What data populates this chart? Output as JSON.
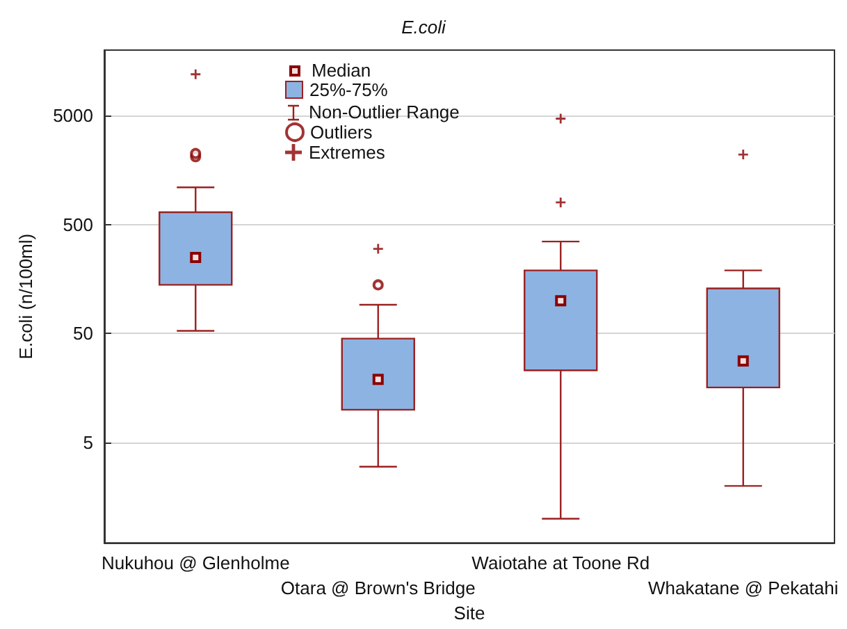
{
  "chart_data": {
    "type": "box",
    "title": "E.coli",
    "xlabel": "Site",
    "ylabel": "E.coli (n/100ml)",
    "categories": [
      "Nukuhou @ Glenholme",
      "Otara @ Brown's Bridge",
      "Waiotahe at Toone Rd",
      "Whakatane @ Pekatahi"
    ],
    "log": "y",
    "ylim": [
      0.6,
      20000
    ],
    "yticks": [
      5,
      50,
      500,
      5000
    ],
    "grid": "y",
    "legend": "top",
    "annotations": [
      "Median",
      "Non-Outlier Range"
    ],
    "series": [
      {
        "type": "box",
        "name": "25%-75%",
        "color": "#8db3e2",
        "boxes": [
          {
            "low": 53,
            "q1": 140,
            "median": 250,
            "q3": 650,
            "high": 1100
          },
          {
            "low": 3,
            "q1": 10,
            "median": 19,
            "q3": 45,
            "high": 92
          },
          {
            "low": 1,
            "q1": 23,
            "median": 100,
            "q3": 190,
            "high": 350
          },
          {
            "low": 2,
            "q1": 16,
            "median": 28,
            "q3": 130,
            "high": 190
          }
        ]
      },
      {
        "type": "scatter",
        "name": "Outliers",
        "color": "#8b0000",
        "marker": "circle",
        "x": [
          "Nukuhou @ Glenholme",
          "Nukuhou @ Glenholme",
          "Otara @ Brown's Bridge"
        ],
        "values": [
          2100,
          2250,
          140
        ]
      },
      {
        "type": "scatter",
        "name": "Extremes",
        "color": "#8b0000",
        "marker": "cross",
        "x": [
          "Nukuhou @ Glenholme",
          "Otara @ Brown's Bridge",
          "Waiotahe at Toone Rd",
          "Waiotahe at Toone Rd",
          "Whakatane @ Pekatahi"
        ],
        "values": [
          12000,
          300,
          4700,
          800,
          2200
        ]
      }
    ]
  }
}
